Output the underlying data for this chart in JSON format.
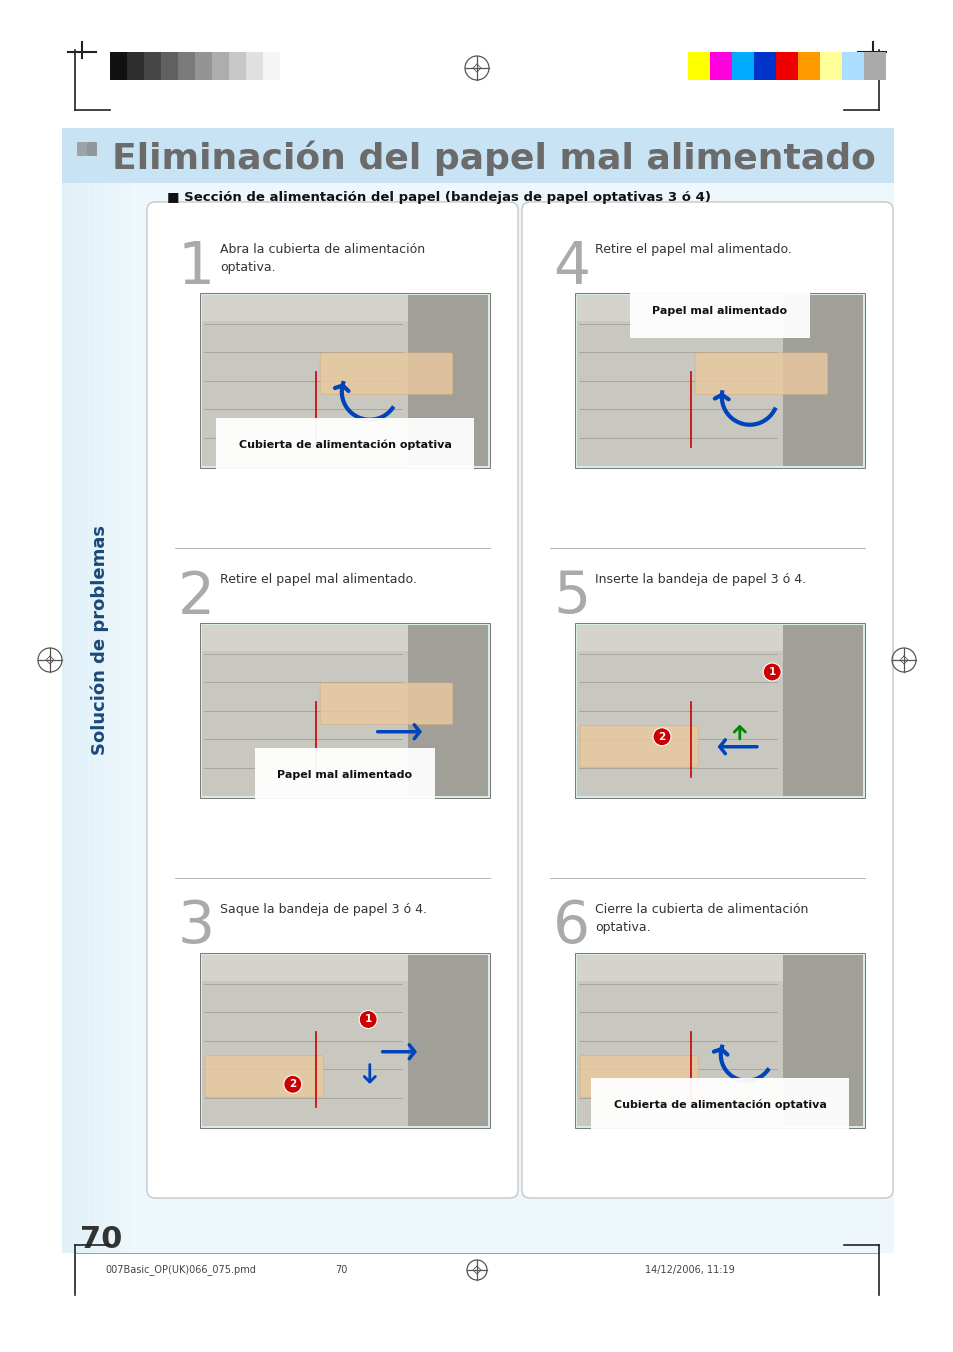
{
  "page_bg": "#ffffff",
  "light_blue_bg": "#daeef8",
  "mid_blue_bg": "#c5e5f5",
  "white_panel_bg": "#ffffff",
  "image_bg": "#d8ebe5",
  "title_text": "Eliminación del papel mal alimentado",
  "title_color": "#6b6b6b",
  "title_fontsize": 26,
  "section_label": "■ Sección de alimentación del papel (bandejas de papel optativas 3 ó 4)",
  "section_label_color": "#111111",
  "section_label_fontsize": 9.5,
  "sidebar_text": "Solución de problemas",
  "sidebar_text_color": "#1a4a7a",
  "sidebar_fontsize": 13,
  "steps": [
    {
      "number": "1",
      "text": "Abra la cubierta de alimentación\noptativa.",
      "caption": "Cubierta de alimentación optativa",
      "caption_inside": true,
      "col": 0,
      "row": 0
    },
    {
      "number": "2",
      "text": "Retire el papel mal alimentado.",
      "caption": "Papel mal alimentado",
      "caption_inside": true,
      "col": 0,
      "row": 1
    },
    {
      "number": "3",
      "text": "Saque la bandeja de papel 3 ó 4.",
      "caption": "",
      "caption_inside": false,
      "col": 0,
      "row": 2
    },
    {
      "number": "4",
      "text": "Retire el papel mal alimentado.",
      "caption": "Papel mal alimentado",
      "caption_inside": true,
      "col": 1,
      "row": 0
    },
    {
      "number": "5",
      "text": "Inserte la bandeja de papel 3 ó 4.",
      "caption": "",
      "caption_inside": false,
      "col": 1,
      "row": 1
    },
    {
      "number": "6",
      "text": "Cierre la cubierta de alimentación\noptativa.",
      "caption": "Cubierta de alimentación optativa",
      "caption_inside": true,
      "col": 1,
      "row": 2
    }
  ],
  "number_color": "#aaaaaa",
  "number_fontsize": 42,
  "step_text_color": "#333333",
  "step_text_fontsize": 9,
  "caption_color": "#111111",
  "caption_fontsize": 7.5,
  "page_number": "70",
  "page_number_color": "#333333",
  "page_number_fontsize": 22,
  "footer_left": "007Basic_OP(UK)066_075.pmd",
  "footer_center_page": "70",
  "footer_right": "14/12/2006, 11:19",
  "footer_fontsize": 7,
  "footer_color": "#444444",
  "grayscale_bar_colors": [
    "#111111",
    "#2d2d2d",
    "#474747",
    "#606060",
    "#7a7a7a",
    "#949494",
    "#adadad",
    "#c7c7c7",
    "#e0e0e0",
    "#f5f5f5"
  ],
  "color_bar_colors": [
    "#ffff00",
    "#ff00dd",
    "#00aaff",
    "#0033cc",
    "#ee0000",
    "#ff9900",
    "#ffff99",
    "#aaddff",
    "#aaaaaa"
  ],
  "panel_border_color": "#bbbbbb",
  "divider_color": "#aaaaaa",
  "red_line_color": "#cc0000",
  "blue_arrow_color": "#0044bb",
  "red_circle_color": "#cc0000",
  "green_color": "#008800",
  "machine_body": "#c8c8c0",
  "machine_dark": "#a0a098",
  "machine_light": "#ddddd5"
}
